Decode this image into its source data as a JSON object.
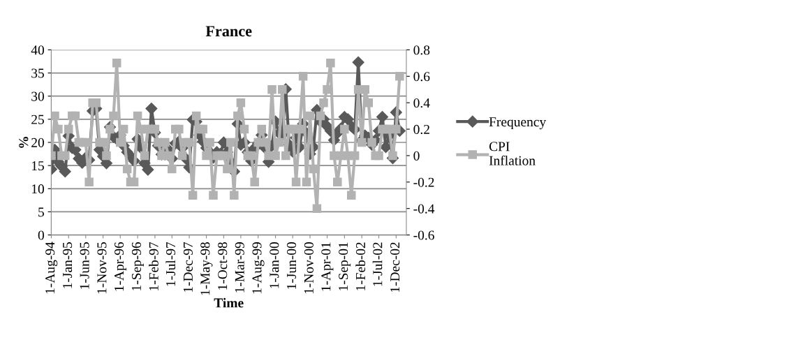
{
  "chart_data": {
    "type": "line",
    "title": "France",
    "xlabel": "Time",
    "ylabel": "%",
    "x": [
      "1994-08-01",
      "1994-09-01",
      "1994-10-01",
      "1994-11-01",
      "1994-12-01",
      "1995-01-01",
      "1995-02-01",
      "1995-03-01",
      "1995-04-01",
      "1995-05-01",
      "1995-06-01",
      "1995-07-01",
      "1995-08-01",
      "1995-09-01",
      "1995-10-01",
      "1995-11-01",
      "1995-12-01",
      "1996-01-01",
      "1996-02-01",
      "1996-03-01",
      "1996-04-01",
      "1996-05-01",
      "1996-06-01",
      "1996-07-01",
      "1996-08-01",
      "1996-09-01",
      "1996-10-01",
      "1996-11-01",
      "1996-12-01",
      "1997-01-01",
      "1997-02-01",
      "1997-03-01",
      "1997-04-01",
      "1997-05-01",
      "1997-06-01",
      "1997-07-01",
      "1997-08-01",
      "1997-09-01",
      "1997-10-01",
      "1997-11-01",
      "1997-12-01",
      "1998-01-01",
      "1998-02-01",
      "1998-03-01",
      "1998-04-01",
      "1998-05-01",
      "1998-06-01",
      "1998-07-01",
      "1998-08-01",
      "1998-09-01",
      "1998-10-01",
      "1998-11-01",
      "1998-12-01",
      "1999-01-01",
      "1999-02-01",
      "1999-03-01",
      "1999-04-01",
      "1999-05-01",
      "1999-06-01",
      "1999-07-01",
      "1999-08-01",
      "1999-09-01",
      "1999-10-01",
      "1999-11-01",
      "1999-12-01",
      "2000-01-01",
      "2000-02-01",
      "2000-03-01",
      "2000-04-01",
      "2000-05-01",
      "2000-06-01",
      "2000-07-01",
      "2000-08-01",
      "2000-09-01",
      "2000-10-01",
      "2000-11-01",
      "2000-12-01",
      "2001-01-01",
      "2001-02-01",
      "2001-03-01",
      "2001-04-01",
      "2001-05-01",
      "2001-06-01",
      "2001-07-01",
      "2001-08-01",
      "2001-09-01",
      "2001-10-01",
      "2001-11-01",
      "2001-12-01",
      "2002-01-01",
      "2002-02-01",
      "2002-03-01",
      "2002-04-01",
      "2002-05-01",
      "2002-06-01",
      "2002-07-01",
      "2002-08-01",
      "2002-09-01",
      "2002-10-01",
      "2002-11-01",
      "2002-12-01",
      "2003-01-01"
    ],
    "xlim": [
      "1994-08-01",
      "2003-03-01"
    ],
    "xticks": [
      {
        "value": "1994-08-01",
        "label": "1-Aug-94"
      },
      {
        "value": "1995-01-01",
        "label": "1-Jan-95"
      },
      {
        "value": "1995-06-01",
        "label": "1-Jun-95"
      },
      {
        "value": "1995-11-01",
        "label": "1-Nov-95"
      },
      {
        "value": "1996-04-01",
        "label": "1-Apr-96"
      },
      {
        "value": "1996-09-01",
        "label": "1-Sep-96"
      },
      {
        "value": "1997-02-01",
        "label": "1-Feb-97"
      },
      {
        "value": "1997-07-01",
        "label": "1-Jul-97"
      },
      {
        "value": "1997-12-01",
        "label": "1-Dec-97"
      },
      {
        "value": "1998-05-01",
        "label": "1-May-98"
      },
      {
        "value": "1998-10-01",
        "label": "1-Oct-98"
      },
      {
        "value": "1999-03-01",
        "label": "1-Mar-99"
      },
      {
        "value": "1999-08-01",
        "label": "1-Aug-99"
      },
      {
        "value": "2000-01-01",
        "label": "1-Jan-00"
      },
      {
        "value": "2000-06-01",
        "label": "1-Jun-00"
      },
      {
        "value": "2000-11-01",
        "label": "1-Nov-00"
      },
      {
        "value": "2001-04-01",
        "label": "1-Apr-01"
      },
      {
        "value": "2001-09-01",
        "label": "1-Sep-01"
      },
      {
        "value": "2002-02-01",
        "label": "1-Feb-02"
      },
      {
        "value": "2002-07-01",
        "label": "1-Jul-02"
      },
      {
        "value": "2002-12-01",
        "label": "1-Dec-02"
      }
    ],
    "ylim": [
      0,
      40
    ],
    "yticks": [
      0,
      5,
      10,
      15,
      20,
      25,
      30,
      35,
      40
    ],
    "y2lim": [
      -0.6,
      0.8
    ],
    "y2ticks": [
      {
        "value": -0.6,
        "label": "-0.6"
      },
      {
        "value": -0.4,
        "label": "-0.4"
      },
      {
        "value": -0.2,
        "label": "-0.2"
      },
      {
        "value": 0,
        "label": "0"
      },
      {
        "value": 0.2,
        "label": "0.2"
      },
      {
        "value": 0.4,
        "label": "0.4"
      },
      {
        "value": 0.6,
        "label": "0.6"
      },
      {
        "value": 0.8,
        "label": "0.8"
      }
    ],
    "grid": "y",
    "legend": "right",
    "line_style": "solid",
    "series": [
      {
        "name": "Frequency",
        "color": "#595959",
        "marker": "diamond",
        "values": [
          14.2,
          18.4,
          15.8,
          14.8,
          13.7,
          21.4,
          18.8,
          18.4,
          16.5,
          15.6,
          16.7,
          16.2,
          26.8,
          27.3,
          18.4,
          17.0,
          15.5,
          23.3,
          21.2,
          20.7,
          21.6,
          19.3,
          17.9,
          17.0,
          16.0,
          20.7,
          18.8,
          15.5,
          14.1,
          27.3,
          22.1,
          19.3,
          17.4,
          17.4,
          18.4,
          16.5,
          19.8,
          20.2,
          18.8,
          16.5,
          14.6,
          24.9,
          24.5,
          21.6,
          20.2,
          18.8,
          17.9,
          16.7,
          17.9,
          17.5,
          20.0,
          17.9,
          15.8,
          13.7,
          24.0,
          19.5,
          20.0,
          17.9,
          16.0,
          18.8,
          19.8,
          21.6,
          18.8,
          15.8,
          19.3,
          24.5,
          22,
          21.6,
          31.5,
          19.5,
          18,
          21,
          19,
          24,
          22,
          17.5,
          19,
          27,
          24.5,
          25,
          23.5,
          22.5,
          20.5,
          22,
          23,
          25.5,
          25,
          23.5,
          22.8,
          37.3,
          20.5,
          21.5,
          21,
          19.5,
          20.5,
          22.5,
          25.5,
          19,
          21.5,
          16.6,
          26.5,
          22.5
        ]
      },
      {
        "name": "CPI Inflation",
        "color": "#b2b2b2",
        "marker": "square",
        "axis": "y2",
        "values": [
          0,
          0.3,
          0.2,
          0,
          0,
          0.2,
          0.3,
          0.3,
          0.1,
          0.1,
          0.1,
          -0.2,
          0.4,
          0.4,
          0.1,
          0.1,
          0,
          0.2,
          0.3,
          0.7,
          0.1,
          0.2,
          -0.1,
          -0.2,
          -0.2,
          0.3,
          0.2,
          0,
          0.2,
          0.2,
          0.2,
          0.1,
          0,
          0.1,
          0,
          -0.1,
          0.2,
          0.2,
          0,
          0.1,
          0.1,
          -0.3,
          0.3,
          0.2,
          0.2,
          0,
          0.1,
          -0.3,
          0,
          0,
          0,
          -0.1,
          0.1,
          -0.3,
          0.3,
          0.4,
          0.2,
          0,
          0,
          -0.2,
          0.1,
          0.2,
          0.1,
          0,
          0.5,
          0,
          0.1,
          0.5,
          0,
          0.2,
          0.2,
          -0.2,
          0.2,
          0.6,
          -0.2,
          0.3,
          -0.1,
          -0.4,
          0.3,
          0.4,
          0.5,
          0.7,
          0,
          -0.2,
          0,
          0.2,
          0,
          -0.3,
          0,
          0.5,
          0.1,
          0.5,
          0.4,
          0.1,
          0,
          0,
          0.2,
          0.2,
          0.2,
          0,
          0.2,
          0.6
        ]
      }
    ]
  }
}
